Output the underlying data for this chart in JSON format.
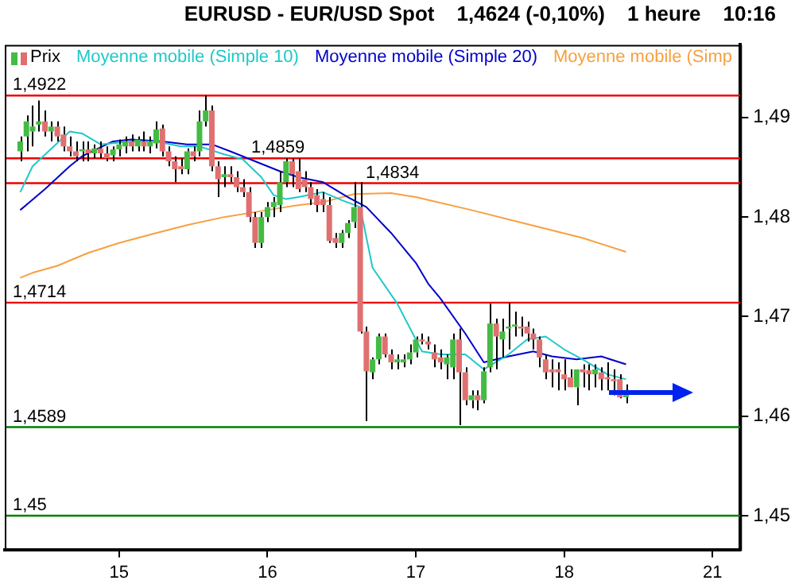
{
  "chart_data": {
    "type": "candlestick",
    "title": "EURUSD - EUR/USD Spot",
    "annotations": [
      "1,4624 (-0,10%)",
      "1 heure",
      "10:16"
    ],
    "categories": [
      null,
      null,
      null,
      null,
      null,
      null,
      null,
      null,
      null,
      null,
      null,
      null,
      null,
      null,
      null,
      null,
      null,
      null,
      "15",
      null,
      null,
      null,
      null,
      null,
      null,
      null,
      null,
      null,
      null,
      null,
      null,
      null,
      null,
      null,
      null,
      null,
      null,
      null,
      null,
      null,
      null,
      null,
      "16",
      null,
      null,
      null,
      null,
      null,
      null,
      null,
      null,
      null,
      null,
      null,
      null,
      null,
      null,
      null,
      null,
      null,
      null,
      null,
      null,
      null,
      null,
      null,
      "17",
      null,
      null,
      null,
      null,
      null,
      null,
      null,
      null,
      null,
      null,
      null,
      null,
      null,
      null,
      null,
      null,
      null,
      null,
      null,
      null,
      null,
      null,
      null,
      "18",
      null,
      null,
      null,
      null,
      null,
      null,
      null,
      null,
      null,
      null,
      null,
      null,
      null,
      null,
      null,
      null,
      null,
      null,
      null,
      null,
      null,
      null,
      null,
      "21",
      null,
      null,
      null,
      null
    ],
    "series": [
      {
        "type": "candlestick",
        "name": "Prix",
        "colors": [
          null,
          null,
          "#44bb44",
          "#44bb44",
          "#44bb44",
          "#44bb44",
          "#e07070",
          "#44bb44",
          "#e07070",
          "#e07070",
          "#e07070",
          "#e07070",
          "#44bb44",
          "#e07070",
          "#44bb44",
          "#e07070",
          "#e07070",
          "#44bb44",
          "#44bb44",
          "#44bb44",
          "#e07070",
          "#44bb44",
          "#e07070",
          "#44bb44",
          "#44bb44",
          "#e07070",
          "#e07070",
          "#e07070",
          "#e07070",
          "#44bb44",
          "#e07070",
          "#44bb44",
          "#44bb44",
          "#e07070",
          "#e07070",
          "#44bb44",
          "#e07070",
          "#e07070",
          "#e07070",
          "#e07070",
          "#e07070",
          "#44bb44",
          "#44bb44",
          "#44bb44",
          "#44bb44",
          "#44bb44",
          "#e07070",
          "#e07070",
          "#e07070",
          "#e07070",
          "#e07070",
          "#e07070",
          "#e07070",
          "#e07070",
          "#44bb44",
          "#44bb44",
          "#44bb44",
          "#e07070",
          "#e07070",
          "#44bb44",
          "#44bb44",
          "#e07070",
          "#e07070",
          "#44bb44",
          "#44bb44",
          "#44bb44",
          "#44bb44",
          "#e07070",
          "#e07070",
          "#e07070",
          "#e07070",
          "#44bb44",
          "#44bb44",
          "#e07070",
          "#e07070",
          "#44bb44",
          "#e07070",
          "#44bb44",
          "#44bb44",
          "#e07070",
          "#44bb44",
          "#44bb44",
          "#44bb44",
          "#e07070",
          "#e07070",
          "#e07070",
          "#e07070",
          "#e07070",
          "#e07070",
          "#e07070",
          "#e07070",
          "#e07070",
          "#44bb44",
          "#e07070",
          "#e07070",
          "#44bb44",
          "#e07070",
          "#e07070",
          "#e07070",
          "#e07070",
          "#44bb44",
          null,
          null,
          null,
          null,
          null,
          null,
          null,
          null,
          null,
          null,
          null,
          null,
          null,
          null,
          null,
          null,
          null,
          null
        ],
        "ohlc": [
          null,
          null,
          [
            1.4866,
            1.4881,
            1.4856,
            1.4876
          ],
          [
            1.4881,
            1.4902,
            1.4866,
            1.4896
          ],
          [
            1.4886,
            1.4912,
            1.4871,
            1.4891
          ],
          [
            1.4893,
            1.4917,
            1.4886,
            1.4896
          ],
          [
            1.4896,
            1.4907,
            1.4881,
            1.4886
          ],
          [
            1.4886,
            1.4896,
            1.4876,
            1.4891
          ],
          [
            1.4891,
            1.4896,
            1.4876,
            1.4881
          ],
          [
            1.4883,
            1.4891,
            1.4866,
            1.4871
          ],
          [
            1.4871,
            1.4881,
            1.4861,
            1.4866
          ],
          [
            1.4866,
            1.4876,
            1.4856,
            1.4861
          ],
          [
            1.4866,
            1.4876,
            1.4856,
            1.4868
          ],
          [
            1.4868,
            1.4876,
            1.4856,
            1.4864
          ],
          [
            1.4864,
            1.4873,
            1.4859,
            1.4869
          ],
          [
            1.4869,
            1.4876,
            1.4859,
            1.4864
          ],
          [
            1.4864,
            1.4871,
            1.4856,
            1.4859
          ],
          [
            1.4862,
            1.4871,
            1.4856,
            1.4868
          ],
          [
            1.4868,
            1.4878,
            1.4861,
            1.4873
          ],
          [
            1.4871,
            1.4881,
            1.4864,
            1.4876
          ],
          [
            1.4876,
            1.4883,
            1.4866,
            1.4871
          ],
          [
            1.4871,
            1.4881,
            1.4866,
            1.4878
          ],
          [
            1.4876,
            1.4886,
            1.4866,
            1.4871
          ],
          [
            1.4871,
            1.4881,
            1.4864,
            1.4876
          ],
          [
            1.4874,
            1.4896,
            1.4869,
            1.4888
          ],
          [
            1.4889,
            1.4893,
            1.4861,
            1.4866
          ],
          [
            1.4866,
            1.4871,
            1.4851,
            1.4856
          ],
          [
            1.4856,
            1.4861,
            1.4835,
            1.4848
          ],
          [
            1.4851,
            1.4859,
            1.4843,
            1.4848
          ],
          [
            1.4848,
            1.4869,
            1.4843,
            1.4866
          ],
          [
            1.4866,
            1.4871,
            1.4856,
            1.4861
          ],
          [
            1.4866,
            1.4907,
            1.4861,
            1.4896
          ],
          [
            1.4896,
            1.4922,
            1.4891,
            1.4907
          ],
          [
            1.4907,
            1.4912,
            1.4846,
            1.4851
          ],
          [
            1.4851,
            1.4856,
            1.482,
            1.4838
          ],
          [
            1.484,
            1.4851,
            1.483,
            1.4843
          ],
          [
            1.4843,
            1.4851,
            1.4835,
            1.484
          ],
          [
            1.484,
            1.4846,
            1.4825,
            1.483
          ],
          [
            1.483,
            1.4838,
            1.482,
            1.4825
          ],
          [
            1.4825,
            1.483,
            1.4795,
            1.48
          ],
          [
            1.48,
            1.4805,
            1.4769,
            1.4774
          ],
          [
            1.4774,
            1.4805,
            1.4769,
            1.48
          ],
          [
            1.48,
            1.4815,
            1.4795,
            1.481
          ],
          [
            1.481,
            1.482,
            1.48,
            1.4815
          ],
          [
            1.4812,
            1.4846,
            1.4805,
            1.4835
          ],
          [
            1.4835,
            1.4859,
            1.483,
            1.4856
          ],
          [
            1.4856,
            1.4859,
            1.483,
            1.4843
          ],
          [
            1.4846,
            1.4859,
            1.4825,
            1.4828
          ],
          [
            1.4838,
            1.4846,
            1.4825,
            1.483
          ],
          [
            1.483,
            1.4835,
            1.4812,
            1.4818
          ],
          [
            1.4822,
            1.4828,
            1.4805,
            1.4812
          ],
          [
            1.4818,
            1.4825,
            1.4805,
            1.4812
          ],
          [
            1.4812,
            1.482,
            1.4774,
            1.4776
          ],
          [
            1.4779,
            1.4784,
            1.4769,
            1.4774
          ],
          [
            1.4774,
            1.4787,
            1.4769,
            1.4784
          ],
          [
            1.4784,
            1.4797,
            1.4779,
            1.4794
          ],
          [
            1.4795,
            1.4835,
            1.4789,
            1.481
          ],
          [
            1.481,
            1.4835,
            1.4683,
            1.4685
          ],
          [
            1.4685,
            1.469,
            1.4595,
            1.4645
          ],
          [
            1.4644,
            1.4659,
            1.4637,
            1.4657
          ],
          [
            1.4657,
            1.4683,
            1.4652,
            1.468
          ],
          [
            1.468,
            1.4683,
            1.4659,
            1.4662
          ],
          [
            1.4662,
            1.4667,
            1.4647,
            1.4654
          ],
          [
            1.4654,
            1.4662,
            1.4647,
            1.4657
          ],
          [
            1.4654,
            1.4662,
            1.4649,
            1.4657
          ],
          [
            1.4657,
            1.4672,
            1.4652,
            1.4664
          ],
          [
            1.4664,
            1.468,
            1.4659,
            1.4677
          ],
          [
            1.4677,
            1.4683,
            1.4672,
            1.4675
          ],
          [
            1.4675,
            1.468,
            1.4667,
            1.4672
          ],
          [
            1.4664,
            1.4672,
            1.4649,
            1.4657
          ],
          [
            1.4659,
            1.4667,
            1.4647,
            1.4654
          ],
          [
            1.4652,
            1.4662,
            1.4637,
            1.4659
          ],
          [
            1.4649,
            1.4683,
            1.4637,
            1.4677
          ],
          [
            1.4677,
            1.4688,
            1.4591,
            1.4644
          ],
          [
            1.4644,
            1.4649,
            1.4611,
            1.4616
          ],
          [
            1.4616,
            1.4626,
            1.4608,
            1.4621
          ],
          [
            1.4621,
            1.4626,
            1.4606,
            1.4616
          ],
          [
            1.4616,
            1.4649,
            1.4613,
            1.4645
          ],
          [
            1.4649,
            1.4713,
            1.4644,
            1.4693
          ],
          [
            1.4693,
            1.4698,
            1.4647,
            1.468
          ],
          [
            1.4677,
            1.4698,
            1.4659,
            1.4685
          ],
          [
            1.4688,
            1.4714,
            1.4667,
            1.469
          ],
          [
            1.469,
            1.4705,
            1.468,
            1.4692
          ],
          [
            1.469,
            1.47,
            1.468,
            1.4688
          ],
          [
            1.469,
            1.4695,
            1.4675,
            1.4683
          ],
          [
            1.4683,
            1.4688,
            1.4667,
            1.4677
          ],
          [
            1.4677,
            1.468,
            1.4649,
            1.4659
          ],
          [
            1.4657,
            1.4662,
            1.4637,
            1.4644
          ],
          [
            1.4647,
            1.4657,
            1.4629,
            1.4644
          ],
          [
            1.4647,
            1.4654,
            1.4626,
            1.4644
          ],
          [
            1.4642,
            1.4657,
            1.4626,
            1.4637
          ],
          [
            1.4639,
            1.4647,
            1.4629,
            1.4629
          ],
          [
            1.4629,
            1.4647,
            1.4611,
            1.4647
          ],
          [
            1.4647,
            1.4652,
            1.4629,
            1.4644
          ],
          [
            1.4646,
            1.4652,
            1.4626,
            1.4642
          ],
          [
            1.4642,
            1.4652,
            1.4629,
            1.4647
          ],
          [
            1.4644,
            1.4649,
            1.4626,
            1.4637
          ],
          [
            1.4639,
            1.4654,
            1.4626,
            1.4637
          ],
          [
            1.4637,
            1.4647,
            1.4621,
            1.4635
          ],
          [
            1.4637,
            1.4642,
            1.4618,
            1.4619
          ],
          [
            1.4619,
            1.4632,
            1.4613,
            1.4624
          ],
          null,
          null,
          null,
          null,
          null,
          null,
          null,
          null,
          null,
          null,
          null,
          null,
          null,
          null,
          null,
          null,
          null,
          null
        ]
      },
      {
        "type": "line",
        "name": "Moyenne mobile (Simple 10)",
        "color": "#20c8c8",
        "values": [
          null,
          null,
          1.4825,
          null,
          1.4851,
          null,
          null,
          null,
          null,
          null,
          1.4886,
          null,
          1.4884,
          null,
          null,
          1.4873,
          null,
          null,
          null,
          null,
          1.4876,
          null,
          null,
          null,
          1.4876,
          null,
          null,
          null,
          1.4871,
          null,
          null,
          1.4871,
          null,
          null,
          null,
          1.4863,
          null,
          null,
          1.4858,
          null,
          null,
          1.484,
          null,
          1.4822,
          null,
          1.4818,
          null,
          1.482,
          null,
          null,
          null,
          1.4825,
          null,
          null,
          1.4817,
          null,
          null,
          1.481,
          null,
          1.4749,
          null,
          null,
          null,
          1.4713,
          null,
          null,
          1.4677,
          1.4665,
          null,
          null,
          1.4662,
          null,
          null,
          null,
          1.4662,
          null,
          null,
          1.4647,
          null,
          null,
          null,
          1.4662,
          null,
          null,
          1.4677,
          null,
          null,
          1.468,
          null,
          null,
          1.4667,
          null,
          null,
          1.4657,
          null,
          null,
          null,
          1.4642,
          null,
          null,
          1.4637,
          null,
          null,
          null,
          null,
          null,
          null,
          null,
          null,
          null,
          null,
          null,
          null,
          null,
          null,
          null,
          null,
          null,
          null
        ]
      },
      {
        "type": "line",
        "name": "Moyenne mobile (Simple 20)",
        "color": "#0000cc",
        "values": [
          null,
          null,
          1.4807,
          null,
          null,
          null,
          1.4828,
          null,
          null,
          null,
          1.4851,
          null,
          1.4861,
          null,
          null,
          null,
          null,
          1.4876,
          null,
          null,
          1.4878,
          null,
          null,
          null,
          null,
          1.4876,
          null,
          null,
          null,
          1.4873,
          null,
          null,
          null,
          1.4873,
          null,
          null,
          1.4866,
          null,
          null,
          null,
          1.4856,
          null,
          null,
          null,
          1.4846,
          null,
          null,
          1.484,
          null,
          null,
          null,
          1.4835,
          null,
          null,
          null,
          1.482,
          null,
          null,
          1.481,
          null,
          null,
          null,
          1.4784,
          null,
          null,
          null,
          1.4754,
          null,
          1.4733,
          null,
          1.4718,
          null,
          null,
          null,
          1.4683,
          null,
          null,
          1.4654,
          null,
          null,
          null,
          1.466,
          null,
          null,
          null,
          1.4665,
          null,
          null,
          1.466,
          null,
          null,
          null,
          1.4657,
          null,
          null,
          null,
          1.466,
          null,
          null,
          null,
          1.4652,
          null,
          null,
          null,
          null,
          null,
          null,
          null,
          null,
          null,
          null,
          null,
          null,
          null,
          null,
          null,
          null,
          null,
          null
        ]
      },
      {
        "type": "line",
        "name": "Moyenne mobile (Simp",
        "color": "#f7a040",
        "values": [
          null,
          null,
          1.4739,
          null,
          1.4744,
          null,
          null,
          null,
          1.4751,
          null,
          null,
          null,
          null,
          1.4764,
          null,
          null,
          null,
          null,
          1.4774,
          null,
          null,
          null,
          null,
          null,
          1.4784,
          null,
          null,
          null,
          null,
          1.4792,
          null,
          null,
          null,
          null,
          null,
          1.48,
          null,
          null,
          null,
          null,
          1.4805,
          null,
          null,
          null,
          null,
          null,
          1.4811,
          null,
          null,
          null,
          null,
          1.4815,
          null,
          null,
          null,
          null,
          1.4823,
          null,
          null,
          null,
          null,
          null,
          1.4824,
          null,
          null,
          null,
          1.482,
          null,
          null,
          null,
          null,
          null,
          null,
          null,
          null,
          1.4807,
          null,
          null,
          null,
          null,
          null,
          null,
          null,
          null,
          1.4793,
          null,
          null,
          null,
          null,
          null,
          null,
          null,
          null,
          1.4779,
          null,
          null,
          null,
          null,
          null,
          null,
          1.4765,
          null,
          null,
          null,
          null,
          null,
          null,
          null,
          null,
          null,
          null,
          null,
          null,
          null,
          null,
          null,
          null,
          null,
          null
        ]
      }
    ],
    "ylim": [
      1.4466,
      1.4973
    ],
    "yticks": [
      {
        "value": 1.45,
        "label": "1,45"
      },
      {
        "value": 1.46,
        "label": "1,46"
      },
      {
        "value": 1.47,
        "label": "1,47"
      },
      {
        "value": 1.48,
        "label": "1,48"
      },
      {
        "value": 1.49,
        "label": "1,49"
      }
    ],
    "ref_lines": [
      {
        "axis": "y",
        "value": 1.4922,
        "label": "1,4922",
        "color": "#ee0000"
      },
      {
        "axis": "y",
        "value": 1.4859,
        "label": "1,4859",
        "color": "#ee0000"
      },
      {
        "axis": "y",
        "value": 1.4834,
        "label": "1,4834",
        "color": "#ee0000"
      },
      {
        "axis": "y",
        "value": 1.4714,
        "label": "1,4714",
        "color": "#ee0000"
      },
      {
        "axis": "y",
        "value": 1.4589,
        "label": "1,4589",
        "color": "#008000"
      },
      {
        "axis": "y",
        "value": 1.45,
        "label": "1,45",
        "color": "#008000"
      }
    ],
    "legend": "top left",
    "grid": false
  }
}
